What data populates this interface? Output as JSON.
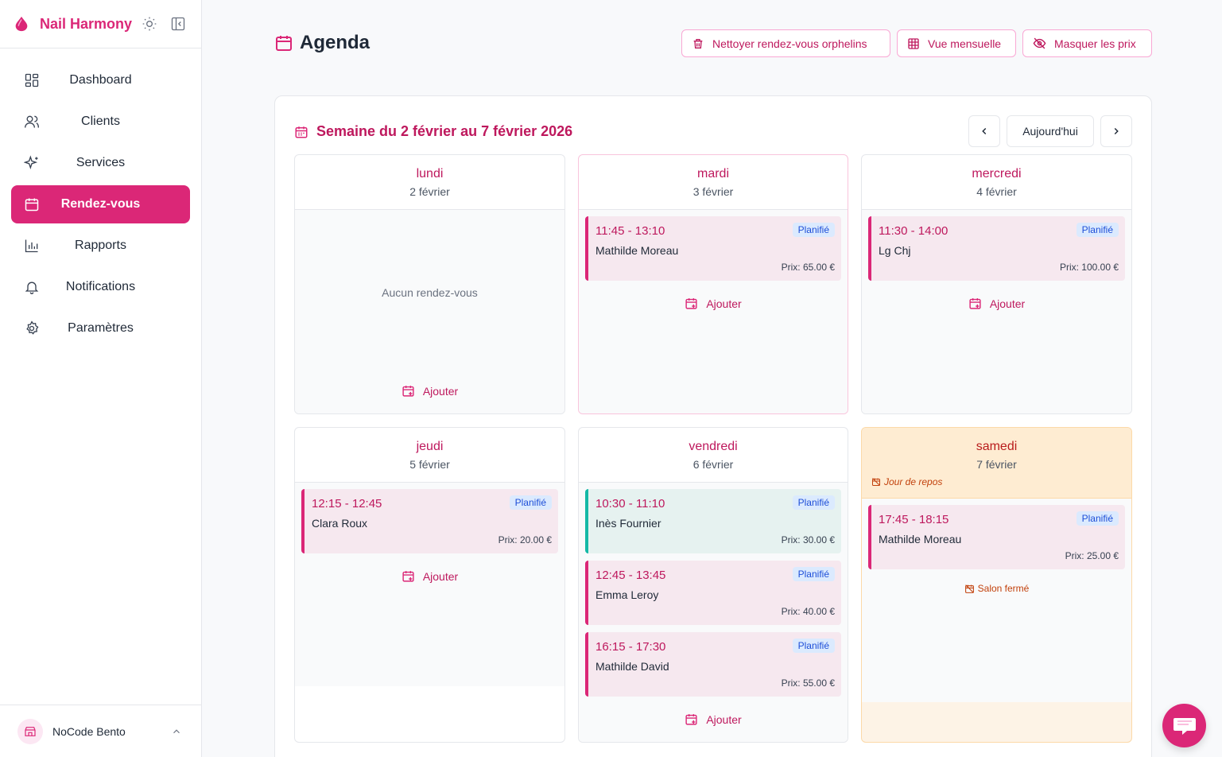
{
  "brand": {
    "name": "Nail Harmony"
  },
  "nav": {
    "items": [
      {
        "label": "Dashboard",
        "icon": "dashboard-icon"
      },
      {
        "label": "Clients",
        "icon": "users-icon"
      },
      {
        "label": "Services",
        "icon": "sparkles-icon"
      },
      {
        "label": "Rendez-vous",
        "icon": "calendar-icon",
        "active": true
      },
      {
        "label": "Rapports",
        "icon": "bar-chart-icon"
      },
      {
        "label": "Notifications",
        "icon": "bell-icon"
      },
      {
        "label": "Paramètres",
        "icon": "gear-icon"
      }
    ]
  },
  "footer": {
    "workspace": "NoCode Bento"
  },
  "header": {
    "title": "Agenda",
    "buttons": {
      "cleanup": "Nettoyer rendez-vous orphelins",
      "monthly": "Vue mensuelle",
      "hide_prices": "Masquer les prix"
    }
  },
  "week": {
    "title": "Semaine du 2 février au 7 février 2026",
    "today_label": "Aujourd'hui"
  },
  "labels": {
    "add": "Ajouter",
    "none": "Aucun rendez-vous",
    "rest_day": "Jour de repos",
    "closed": "Salon fermé"
  },
  "days": [
    {
      "name": "lundi",
      "date": "2 février",
      "appointments": []
    },
    {
      "name": "mardi",
      "date": "3 février",
      "appointments": [
        {
          "time": "11:45 - 13:10",
          "client": "Mathilde Moreau",
          "status": "Planifié",
          "price": "Prix: 65.00 €"
        }
      ]
    },
    {
      "name": "mercredi",
      "date": "4 février",
      "appointments": [
        {
          "time": "11:30 - 14:00",
          "client": "Lg Chj",
          "status": "Planifié",
          "price": "Prix: 100.00 €"
        }
      ]
    },
    {
      "name": "jeudi",
      "date": "5 février",
      "appointments": [
        {
          "time": "12:15 - 12:45",
          "client": "Clara Roux",
          "status": "Planifié",
          "price": "Prix: 20.00 €"
        }
      ]
    },
    {
      "name": "vendredi",
      "date": "6 février",
      "appointments": [
        {
          "time": "10:30 - 11:10",
          "client": "Inès Fournier",
          "status": "Planifié",
          "price": "Prix: 30.00 €",
          "color": "teal"
        },
        {
          "time": "12:45 - 13:45",
          "client": "Emma Leroy",
          "status": "Planifié",
          "price": "Prix: 40.00 €"
        },
        {
          "time": "16:15 - 17:30",
          "client": "Mathilde David",
          "status": "Planifié",
          "price": "Prix: 55.00 €"
        }
      ]
    },
    {
      "name": "samedi",
      "date": "7 février",
      "rest": true,
      "appointments": [
        {
          "time": "17:45 - 18:15",
          "client": "Mathilde Moreau",
          "status": "Planifié",
          "price": "Prix: 25.00 €"
        }
      ]
    }
  ],
  "colors": {
    "accent": "#db2777",
    "accent_dark": "#be185d",
    "teal": "#14b8a6",
    "rest_bg": "#fdf3e6"
  }
}
